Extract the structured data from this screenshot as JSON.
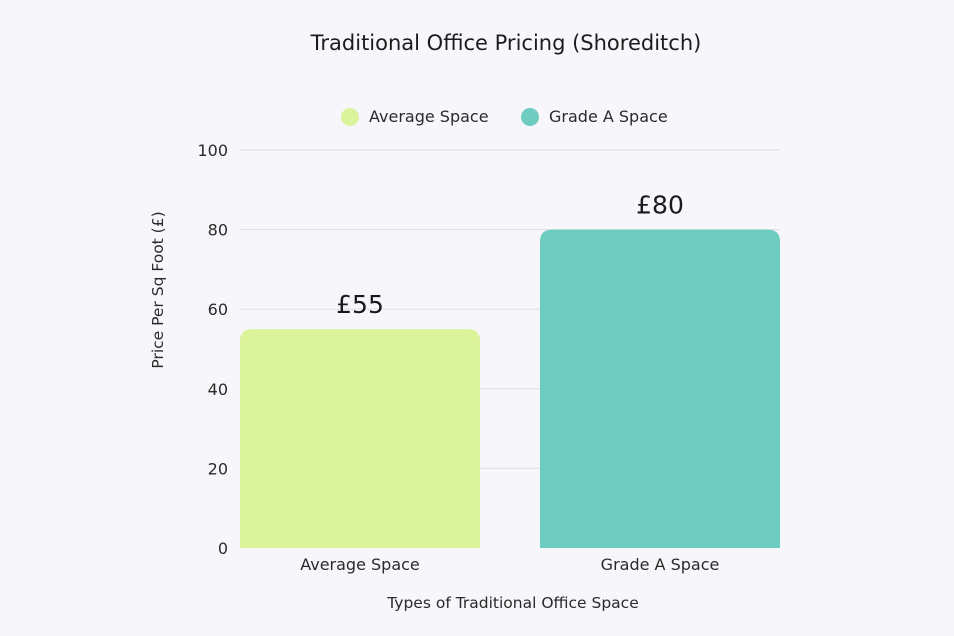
{
  "chart_data": {
    "type": "bar",
    "title": "Traditional Office Pricing (Shoreditch)",
    "categories": [
      "Average Space",
      "Grade A Space"
    ],
    "values": [
      55,
      80
    ],
    "data_labels": [
      "£55",
      "£80"
    ],
    "colors": [
      "#dbf39b",
      "#6fccc0"
    ],
    "legend": [
      {
        "label": "Average Space",
        "color": "#dbf39b"
      },
      {
        "label": "Grade A Space",
        "color": "#6fccc0"
      }
    ],
    "legend_position": "top-center",
    "xlabel": "Types of Traditional Office Space",
    "ylabel": "Price Per Sq Foot (£)",
    "ylim": [
      0,
      100
    ],
    "yticks": [
      0,
      20,
      40,
      60,
      80,
      100
    ],
    "grid": true
  }
}
